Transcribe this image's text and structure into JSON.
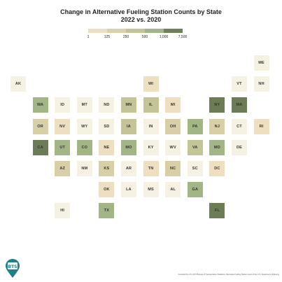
{
  "title_line1": "Change in Alternative Fueling Station Counts by State",
  "title_line2": "2022 vs. 2020",
  "legend": {
    "ticks": [
      "1",
      "125",
      "250",
      "500",
      "1,000",
      "7,500"
    ],
    "colors": [
      "#f7f1e1",
      "#eedfc2",
      "#dcd1a9",
      "#c3c596",
      "#9fb587",
      "#6e8158"
    ]
  },
  "colors": {
    "c0": "#f6f2e3",
    "c1": "#eedfc0",
    "c2": "#d9cfa6",
    "c3": "#c4c596",
    "c4": "#a2b585",
    "c5": "#6c7c56"
  },
  "states": [
    {
      "abbr": "ME",
      "row": 0,
      "col": 11,
      "level": "c0"
    },
    {
      "abbr": "AK",
      "row": 1,
      "col": 0,
      "level": "c0"
    },
    {
      "abbr": "WI",
      "row": 1,
      "col": 6,
      "level": "c1"
    },
    {
      "abbr": "VT",
      "row": 1,
      "col": 10,
      "level": "c0"
    },
    {
      "abbr": "NH",
      "row": 1,
      "col": 11,
      "level": "c0"
    },
    {
      "abbr": "WA",
      "row": 2,
      "col": 1,
      "level": "c4"
    },
    {
      "abbr": "ID",
      "row": 2,
      "col": 2,
      "level": "c0"
    },
    {
      "abbr": "MT",
      "row": 2,
      "col": 3,
      "level": "c0"
    },
    {
      "abbr": "ND",
      "row": 2,
      "col": 4,
      "level": "c0"
    },
    {
      "abbr": "MN",
      "row": 2,
      "col": 5,
      "level": "c3"
    },
    {
      "abbr": "IL",
      "row": 2,
      "col": 6,
      "level": "c3"
    },
    {
      "abbr": "MI",
      "row": 2,
      "col": 7,
      "level": "c1"
    },
    {
      "abbr": "NY",
      "row": 2,
      "col": 9,
      "level": "c5"
    },
    {
      "abbr": "MA",
      "row": 2,
      "col": 10,
      "level": "c5"
    },
    {
      "abbr": "OR",
      "row": 3,
      "col": 1,
      "level": "c2"
    },
    {
      "abbr": "NV",
      "row": 3,
      "col": 2,
      "level": "c1"
    },
    {
      "abbr": "WY",
      "row": 3,
      "col": 3,
      "level": "c0"
    },
    {
      "abbr": "SD",
      "row": 3,
      "col": 4,
      "level": "c0"
    },
    {
      "abbr": "IA",
      "row": 3,
      "col": 5,
      "level": "c3"
    },
    {
      "abbr": "IN",
      "row": 3,
      "col": 6,
      "level": "c0"
    },
    {
      "abbr": "OH",
      "row": 3,
      "col": 7,
      "level": "c2"
    },
    {
      "abbr": "PA",
      "row": 3,
      "col": 8,
      "level": "c4"
    },
    {
      "abbr": "NJ",
      "row": 3,
      "col": 9,
      "level": "c2"
    },
    {
      "abbr": "CT",
      "row": 3,
      "col": 10,
      "level": "c0"
    },
    {
      "abbr": "RI",
      "row": 3,
      "col": 11,
      "level": "c1"
    },
    {
      "abbr": "CA",
      "row": 4,
      "col": 1,
      "level": "c5"
    },
    {
      "abbr": "UT",
      "row": 4,
      "col": 2,
      "level": "c4"
    },
    {
      "abbr": "CO",
      "row": 4,
      "col": 3,
      "level": "c4"
    },
    {
      "abbr": "NE",
      "row": 4,
      "col": 4,
      "level": "c1"
    },
    {
      "abbr": "MO",
      "row": 4,
      "col": 5,
      "level": "c4"
    },
    {
      "abbr": "KY",
      "row": 4,
      "col": 6,
      "level": "c0"
    },
    {
      "abbr": "WV",
      "row": 4,
      "col": 7,
      "level": "c0"
    },
    {
      "abbr": "VA",
      "row": 4,
      "col": 8,
      "level": "c3"
    },
    {
      "abbr": "MD",
      "row": 4,
      "col": 9,
      "level": "c4"
    },
    {
      "abbr": "DE",
      "row": 4,
      "col": 10,
      "level": "c0"
    },
    {
      "abbr": "AZ",
      "row": 5,
      "col": 2,
      "level": "c2"
    },
    {
      "abbr": "NM",
      "row": 5,
      "col": 3,
      "level": "c0"
    },
    {
      "abbr": "KS",
      "row": 5,
      "col": 4,
      "level": "c2"
    },
    {
      "abbr": "AR",
      "row": 5,
      "col": 5,
      "level": "c0"
    },
    {
      "abbr": "TN",
      "row": 5,
      "col": 6,
      "level": "c1"
    },
    {
      "abbr": "NC",
      "row": 5,
      "col": 7,
      "level": "c2"
    },
    {
      "abbr": "SC",
      "row": 5,
      "col": 8,
      "level": "c0"
    },
    {
      "abbr": "DC",
      "row": 5,
      "col": 9,
      "level": "c1"
    },
    {
      "abbr": "OK",
      "row": 6,
      "col": 4,
      "level": "c1"
    },
    {
      "abbr": "LA",
      "row": 6,
      "col": 5,
      "level": "c0"
    },
    {
      "abbr": "MS",
      "row": 6,
      "col": 6,
      "level": "c0"
    },
    {
      "abbr": "AL",
      "row": 6,
      "col": 7,
      "level": "c0"
    },
    {
      "abbr": "GA",
      "row": 6,
      "col": 8,
      "level": "c4"
    },
    {
      "abbr": "HI",
      "row": 7,
      "col": 2,
      "level": "c0"
    },
    {
      "abbr": "TX",
      "row": 7,
      "col": 4,
      "level": "c4"
    },
    {
      "abbr": "FL",
      "row": 7,
      "col": 9,
      "level": "c5"
    }
  ],
  "logo": {
    "icon": "bts-location-pin-icon",
    "text": "BTS",
    "color": "#1f7f8a"
  },
  "footer": "Compiled by U.S. DOT Bureau of Transportation Statistics; Alternative Fueling Station count of the U.S. Department of Energy"
}
